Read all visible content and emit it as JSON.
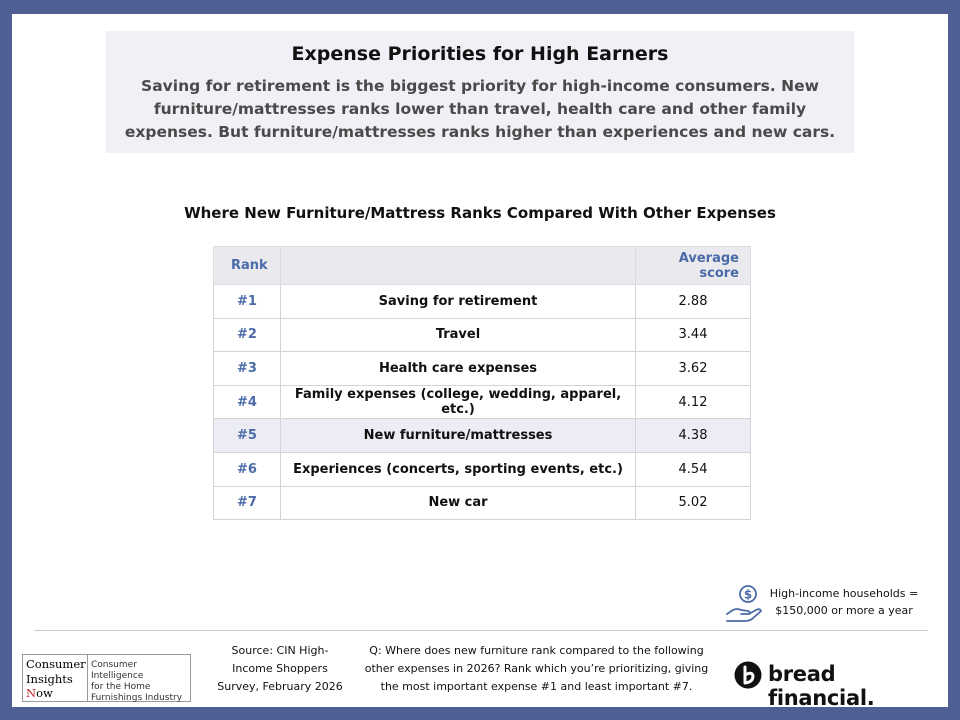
{
  "header": {
    "title": "Expense Priorities for High Earners",
    "subtitle": "Saving for retirement is the biggest priority for high-income consumers. New furniture/mattresses ranks lower than travel, health care and other family expenses. But furniture/mattresses ranks higher than experiences and new cars."
  },
  "table": {
    "title": "Where New Furniture/Mattress Ranks Compared With Other Expenses",
    "col_rank": "Rank",
    "col_score": "Average score",
    "highlight_color": "#ececf4",
    "rows": [
      {
        "rank": "#1",
        "expense": "Saving for retirement",
        "score": "2.88"
      },
      {
        "rank": "#2",
        "expense": "Travel",
        "score": "3.44"
      },
      {
        "rank": "#3",
        "expense": "Health care expenses",
        "score": "3.62"
      },
      {
        "rank": "#4",
        "expense": "Family expenses (college, wedding, apparel, etc.)",
        "score": "4.12"
      },
      {
        "rank": "#5",
        "expense": "New furniture/mattresses",
        "score": "4.38"
      },
      {
        "rank": "#6",
        "expense": "Experiences (concerts, sporting events, etc.)",
        "score": "4.54"
      },
      {
        "rank": "#7",
        "expense": "New car",
        "score": "5.02"
      }
    ]
  },
  "legend": {
    "icon": "money-hand-icon",
    "line1": "High-income households =",
    "line2": "$150,000 or more a year"
  },
  "footer": {
    "source_lines": [
      "Source: CIN High-",
      "Income Shoppers",
      "Survey, February 2026"
    ],
    "question_lines": [
      "Q: Where does new furniture rank compared to the following",
      "other expenses in 2026? Rank which you’re prioritizing, giving",
      "the most important expense #1 and least important #7."
    ],
    "cin_logo": {
      "line1": "Consumer",
      "line2": "Insights",
      "line3_first": "N",
      "line3_rest": "ow",
      "tagline_lines": [
        "Consumer Intelligence",
        "for the Home",
        "Furnishings Industry"
      ]
    },
    "bread_logo": {
      "text": "bread financial",
      "mark": ".",
      "icon": "bread-b-icon"
    }
  },
  "colors": {
    "frame": "#4f5f93",
    "accent": "#4a6aa8",
    "cin_red": "#c0282d"
  }
}
